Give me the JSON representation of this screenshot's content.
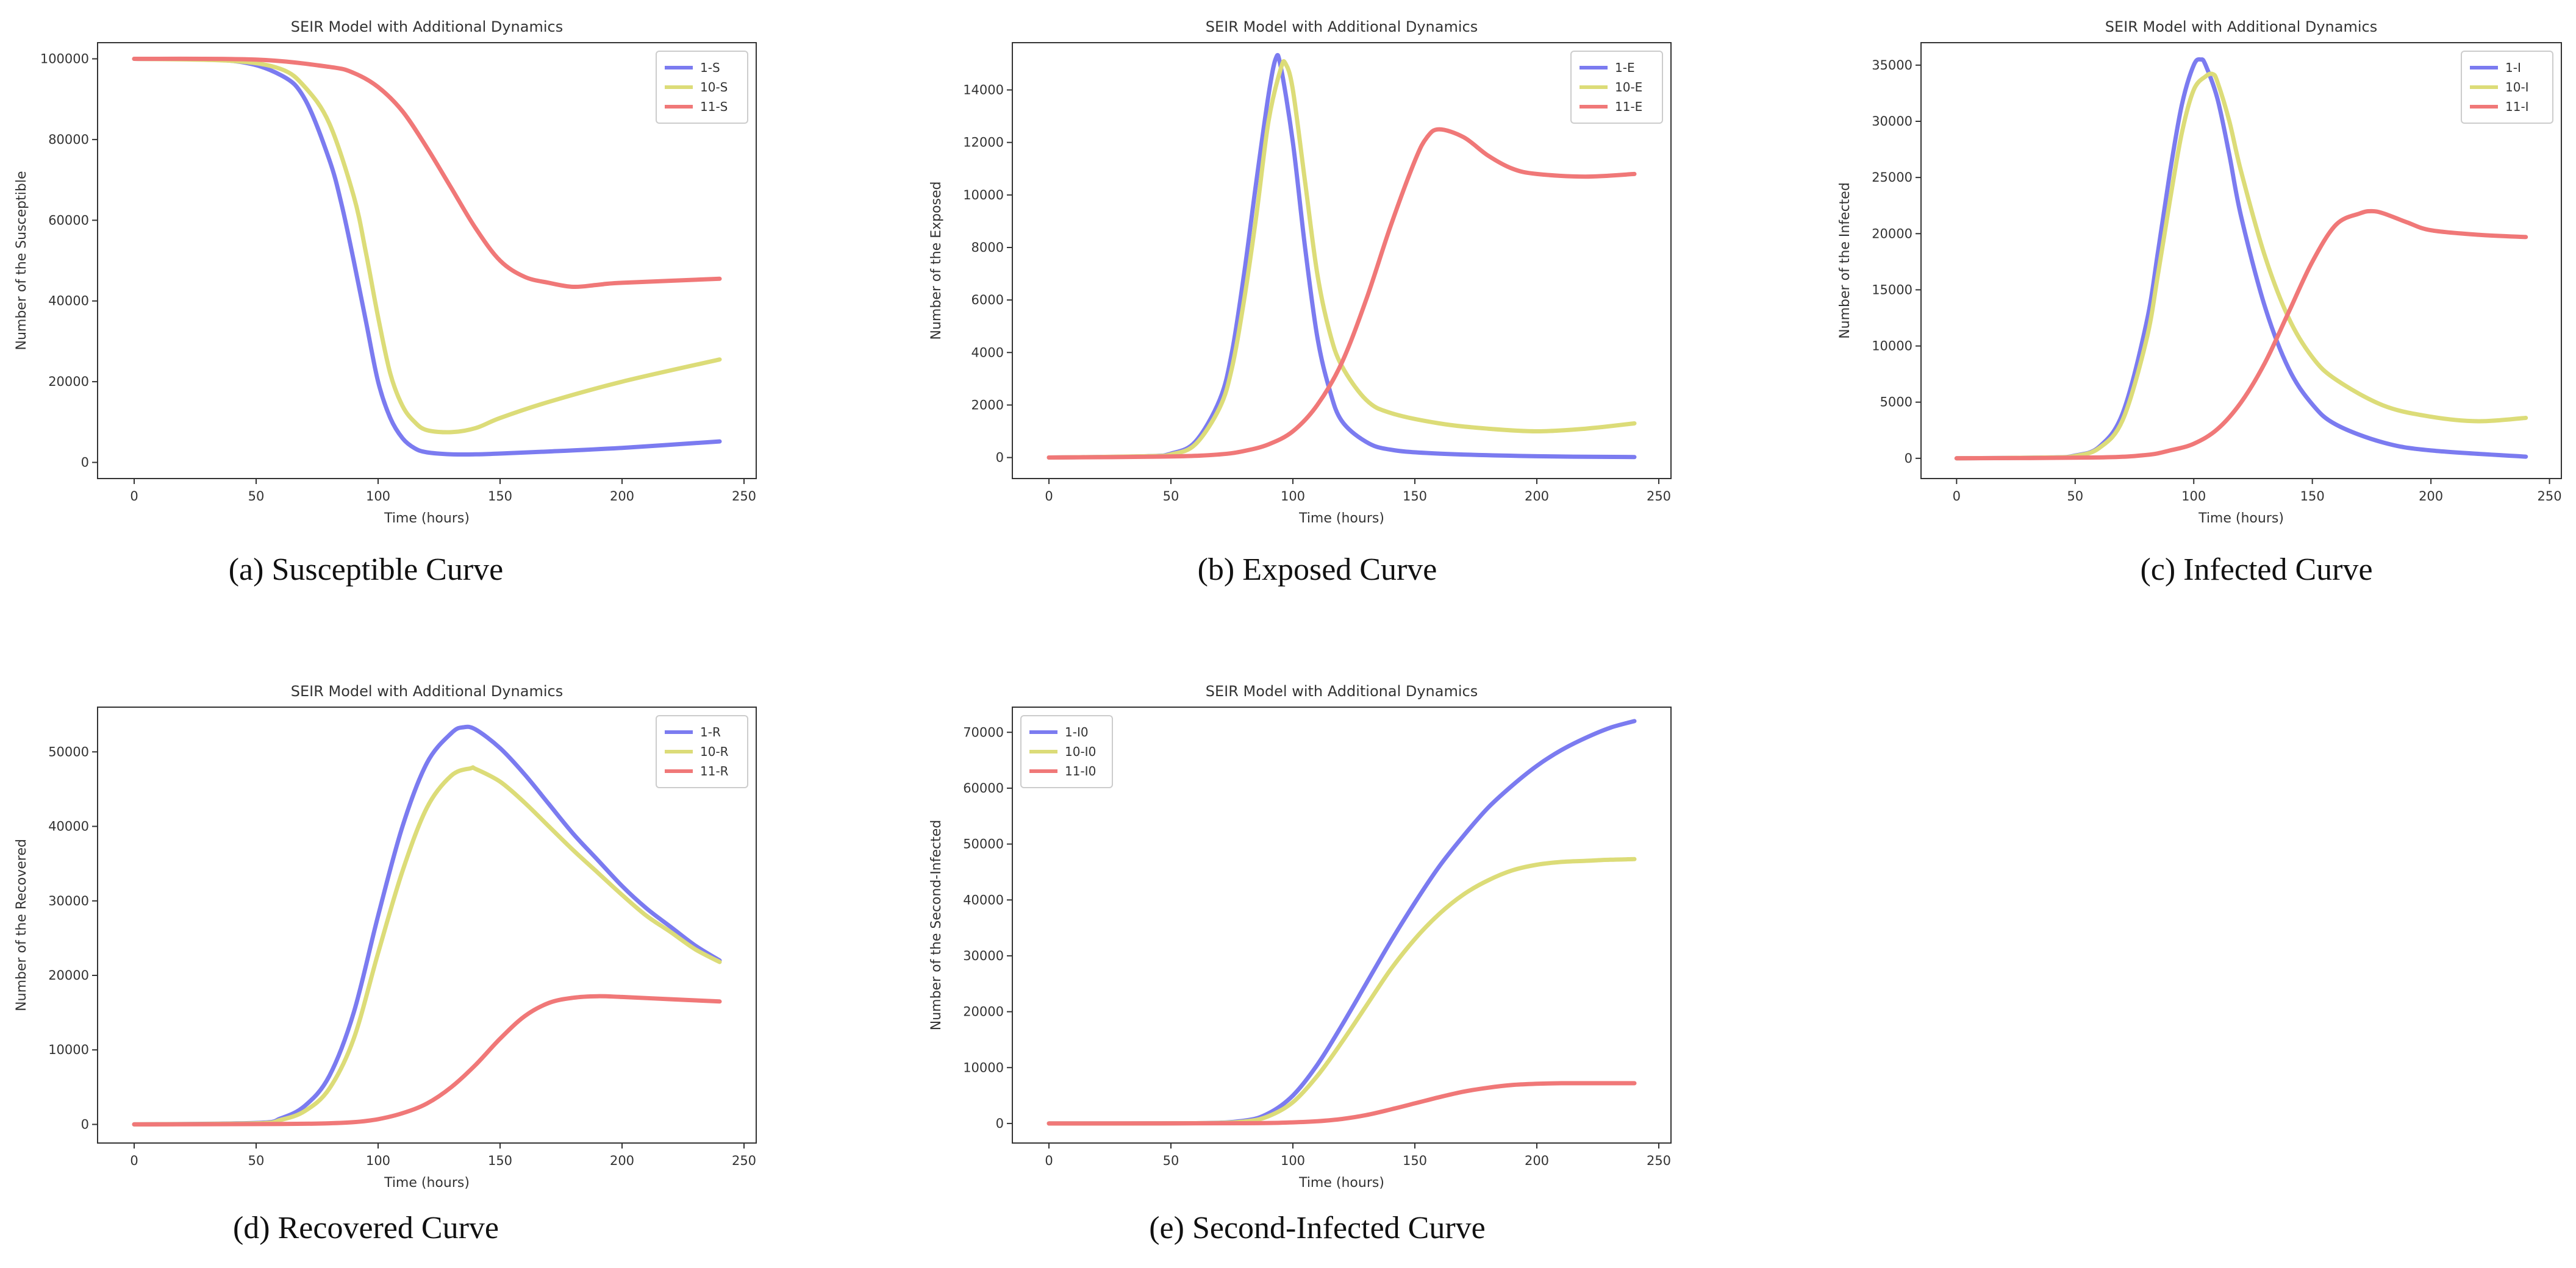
{
  "colors": {
    "s1": "#7b7bf0",
    "s10": "#dcdc78",
    "s11": "#f07878"
  },
  "captions": [
    "(a) Susceptible Curve",
    "(b) Exposed Curve",
    "(c) Infected Curve",
    "(d) Recovered Curve",
    "(e) Second-Infected Curve"
  ],
  "chart_data": [
    {
      "type": "line",
      "title": "SEIR Model with Additional Dynamics",
      "xlabel": "Time (hours)",
      "ylabel": "Number of the Susceptible",
      "xlim": [
        -15,
        255
      ],
      "ylim": [
        -4000,
        104000
      ],
      "xticks": [
        0,
        50,
        100,
        150,
        200,
        250
      ],
      "yticks": [
        0,
        20000,
        40000,
        60000,
        80000,
        100000
      ],
      "legend": "top-right",
      "series": [
        {
          "name": "1-S",
          "color": "#7b7bf0",
          "x": [
            0,
            40,
            60,
            70,
            80,
            85,
            90,
            95,
            100,
            105,
            110,
            115,
            120,
            130,
            140,
            150,
            170,
            200,
            240
          ],
          "y": [
            100000,
            99500,
            96000,
            90000,
            75000,
            64000,
            50000,
            35000,
            20000,
            11000,
            6000,
            3500,
            2500,
            2000,
            2000,
            2200,
            2700,
            3600,
            5200
          ]
        },
        {
          "name": "10-S",
          "color": "#dcdc78",
          "x": [
            0,
            40,
            60,
            70,
            80,
            90,
            95,
            100,
            105,
            110,
            115,
            120,
            130,
            140,
            150,
            170,
            200,
            240
          ],
          "y": [
            100000,
            99500,
            97500,
            93000,
            84000,
            66000,
            52000,
            36000,
            22000,
            14000,
            10000,
            8000,
            7500,
            8500,
            11000,
            15000,
            20000,
            25500
          ]
        },
        {
          "name": "11-S",
          "color": "#f07878",
          "x": [
            0,
            50,
            80,
            90,
            100,
            110,
            120,
            130,
            140,
            150,
            160,
            170,
            180,
            190,
            200,
            240
          ],
          "y": [
            100000,
            99800,
            98000,
            96500,
            93000,
            87000,
            78000,
            68000,
            58000,
            50000,
            46000,
            44500,
            43500,
            44000,
            44500,
            45500
          ]
        }
      ]
    },
    {
      "type": "line",
      "title": "SEIR Model with Additional Dynamics",
      "xlabel": "Time (hours)",
      "ylabel": "Number of the Exposed",
      "xlim": [
        -15,
        255
      ],
      "ylim": [
        -800,
        15800
      ],
      "xticks": [
        0,
        50,
        100,
        150,
        200,
        250
      ],
      "yticks": [
        0,
        2000,
        4000,
        6000,
        8000,
        10000,
        12000,
        14000
      ],
      "legend": "top-right",
      "series": [
        {
          "name": "1-E",
          "color": "#7b7bf0",
          "x": [
            0,
            40,
            50,
            60,
            70,
            75,
            80,
            85,
            90,
            93,
            95,
            100,
            105,
            110,
            115,
            120,
            130,
            140,
            160,
            200,
            240
          ],
          "y": [
            0,
            50,
            150,
            600,
            2200,
            4000,
            7000,
            10500,
            13800,
            15200,
            14900,
            12000,
            8000,
            4600,
            2600,
            1400,
            600,
            300,
            150,
            50,
            20
          ]
        },
        {
          "name": "10-E",
          "color": "#dcdc78",
          "x": [
            0,
            40,
            50,
            60,
            70,
            75,
            80,
            85,
            90,
            95,
            97,
            100,
            105,
            110,
            115,
            120,
            130,
            140,
            160,
            180,
            200,
            220,
            240
          ],
          "y": [
            0,
            50,
            120,
            500,
            1900,
            3400,
            6000,
            9200,
            12800,
            14800,
            15000,
            14000,
            10500,
            7000,
            4800,
            3500,
            2200,
            1700,
            1300,
            1100,
            1000,
            1100,
            1300
          ]
        },
        {
          "name": "11-E",
          "color": "#f07878",
          "x": [
            0,
            50,
            70,
            80,
            90,
            100,
            110,
            120,
            130,
            140,
            150,
            155,
            160,
            170,
            180,
            190,
            200,
            220,
            240
          ],
          "y": [
            0,
            40,
            120,
            250,
            500,
            1000,
            2000,
            3600,
            6000,
            8800,
            11300,
            12200,
            12500,
            12200,
            11500,
            11000,
            10800,
            10700,
            10800
          ]
        }
      ]
    },
    {
      "type": "line",
      "title": "SEIR Model with Additional Dynamics",
      "xlabel": "Time (hours)",
      "ylabel": "Number of the Infected",
      "xlim": [
        -15,
        255
      ],
      "ylim": [
        -1800,
        37000
      ],
      "xticks": [
        0,
        50,
        100,
        150,
        200,
        250
      ],
      "yticks": [
        0,
        5000,
        10000,
        15000,
        20000,
        25000,
        30000,
        35000
      ],
      "legend": "top-right",
      "series": [
        {
          "name": "1-I",
          "color": "#7b7bf0",
          "x": [
            0,
            40,
            50,
            60,
            70,
            80,
            85,
            90,
            95,
            100,
            103,
            105,
            110,
            115,
            120,
            130,
            140,
            150,
            160,
            180,
            200,
            240
          ],
          "y": [
            0,
            80,
            250,
            1000,
            4000,
            12000,
            18500,
            25500,
            31500,
            35000,
            35500,
            35000,
            32000,
            27000,
            21500,
            13500,
            8000,
            4800,
            3000,
            1400,
            700,
            150
          ]
        },
        {
          "name": "10-I",
          "color": "#dcdc78",
          "x": [
            0,
            40,
            50,
            60,
            70,
            80,
            85,
            90,
            95,
            100,
            105,
            108,
            110,
            115,
            120,
            130,
            140,
            150,
            160,
            180,
            200,
            220,
            240
          ],
          "y": [
            0,
            80,
            220,
            900,
            3400,
            10500,
            16500,
            23000,
            29000,
            32800,
            34000,
            34200,
            33500,
            30000,
            25500,
            18000,
            12500,
            9000,
            7000,
            4700,
            3700,
            3300,
            3600
          ]
        },
        {
          "name": "11-I",
          "color": "#f07878",
          "x": [
            0,
            60,
            80,
            90,
            100,
            110,
            120,
            130,
            140,
            150,
            160,
            170,
            175,
            180,
            190,
            200,
            220,
            240
          ],
          "y": [
            0,
            80,
            300,
            700,
            1300,
            2600,
            5000,
            8500,
            13000,
            17500,
            20800,
            21800,
            22000,
            21800,
            21000,
            20300,
            19900,
            19700
          ]
        }
      ]
    },
    {
      "type": "line",
      "title": "SEIR Model with Additional Dynamics",
      "xlabel": "Time (hours)",
      "ylabel": "Number of the Recovered",
      "xlim": [
        -15,
        255
      ],
      "ylim": [
        -2500,
        56000
      ],
      "xticks": [
        0,
        50,
        100,
        150,
        200,
        250
      ],
      "yticks": [
        0,
        10000,
        20000,
        30000,
        40000,
        50000
      ],
      "legend": "top-right",
      "series": [
        {
          "name": "1-R",
          "color": "#7b7bf0",
          "x": [
            0,
            50,
            60,
            70,
            80,
            90,
            100,
            110,
            120,
            130,
            135,
            140,
            150,
            160,
            170,
            180,
            190,
            200,
            210,
            220,
            230,
            240
          ],
          "y": [
            0,
            200,
            800,
            2500,
            6500,
            15000,
            28000,
            40000,
            48500,
            52500,
            53300,
            53000,
            50500,
            47000,
            43000,
            39000,
            35500,
            32000,
            29000,
            26500,
            24000,
            22000
          ]
        },
        {
          "name": "10-R",
          "color": "#dcdc78",
          "x": [
            0,
            50,
            60,
            70,
            80,
            90,
            100,
            110,
            120,
            130,
            138,
            140,
            150,
            160,
            170,
            180,
            190,
            200,
            210,
            220,
            230,
            240
          ],
          "y": [
            0,
            150,
            600,
            1800,
            4800,
            11500,
            23000,
            34000,
            42500,
            46800,
            47800,
            47700,
            46000,
            43200,
            40000,
            36800,
            33800,
            30800,
            28000,
            25800,
            23500,
            21800
          ]
        },
        {
          "name": "11-R",
          "color": "#f07878",
          "x": [
            0,
            60,
            80,
            90,
            100,
            110,
            120,
            130,
            140,
            150,
            160,
            170,
            180,
            190,
            200,
            220,
            240
          ],
          "y": [
            0,
            50,
            150,
            300,
            700,
            1500,
            2800,
            5000,
            8000,
            11500,
            14500,
            16300,
            17000,
            17200,
            17100,
            16800,
            16500
          ]
        }
      ]
    },
    {
      "type": "line",
      "title": "SEIR Model with Additional Dynamics",
      "xlabel": "Time (hours)",
      "ylabel": "Number of the Second-Infected",
      "xlim": [
        -15,
        255
      ],
      "ylim": [
        -3500,
        74500
      ],
      "xticks": [
        0,
        50,
        100,
        150,
        200,
        250
      ],
      "yticks": [
        0,
        10000,
        20000,
        30000,
        40000,
        50000,
        60000,
        70000
      ],
      "legend": "top-left",
      "series": [
        {
          "name": "1-I0",
          "color": "#7b7bf0",
          "x": [
            0,
            60,
            80,
            90,
            100,
            110,
            120,
            130,
            140,
            150,
            160,
            170,
            180,
            190,
            200,
            210,
            220,
            230,
            240
          ],
          "y": [
            0,
            50,
            500,
            1800,
            5000,
            10500,
            17500,
            25000,
            32500,
            39500,
            46000,
            51500,
            56500,
            60500,
            64000,
            66800,
            69000,
            70800,
            72000
          ]
        },
        {
          "name": "10-I0",
          "color": "#dcdc78",
          "x": [
            0,
            60,
            80,
            90,
            100,
            110,
            120,
            130,
            140,
            150,
            160,
            170,
            180,
            190,
            200,
            210,
            220,
            230,
            240
          ],
          "y": [
            0,
            40,
            350,
            1300,
            3800,
            8500,
            14500,
            21000,
            27500,
            33000,
            37500,
            41000,
            43500,
            45300,
            46300,
            46800,
            47000,
            47200,
            47300
          ]
        },
        {
          "name": "11-I0",
          "color": "#f07878",
          "x": [
            0,
            80,
            100,
            110,
            120,
            130,
            140,
            150,
            160,
            170,
            180,
            190,
            200,
            210,
            220,
            240
          ],
          "y": [
            0,
            50,
            200,
            400,
            800,
            1500,
            2500,
            3600,
            4700,
            5700,
            6400,
            6900,
            7100,
            7200,
            7200,
            7200
          ]
        }
      ]
    }
  ]
}
